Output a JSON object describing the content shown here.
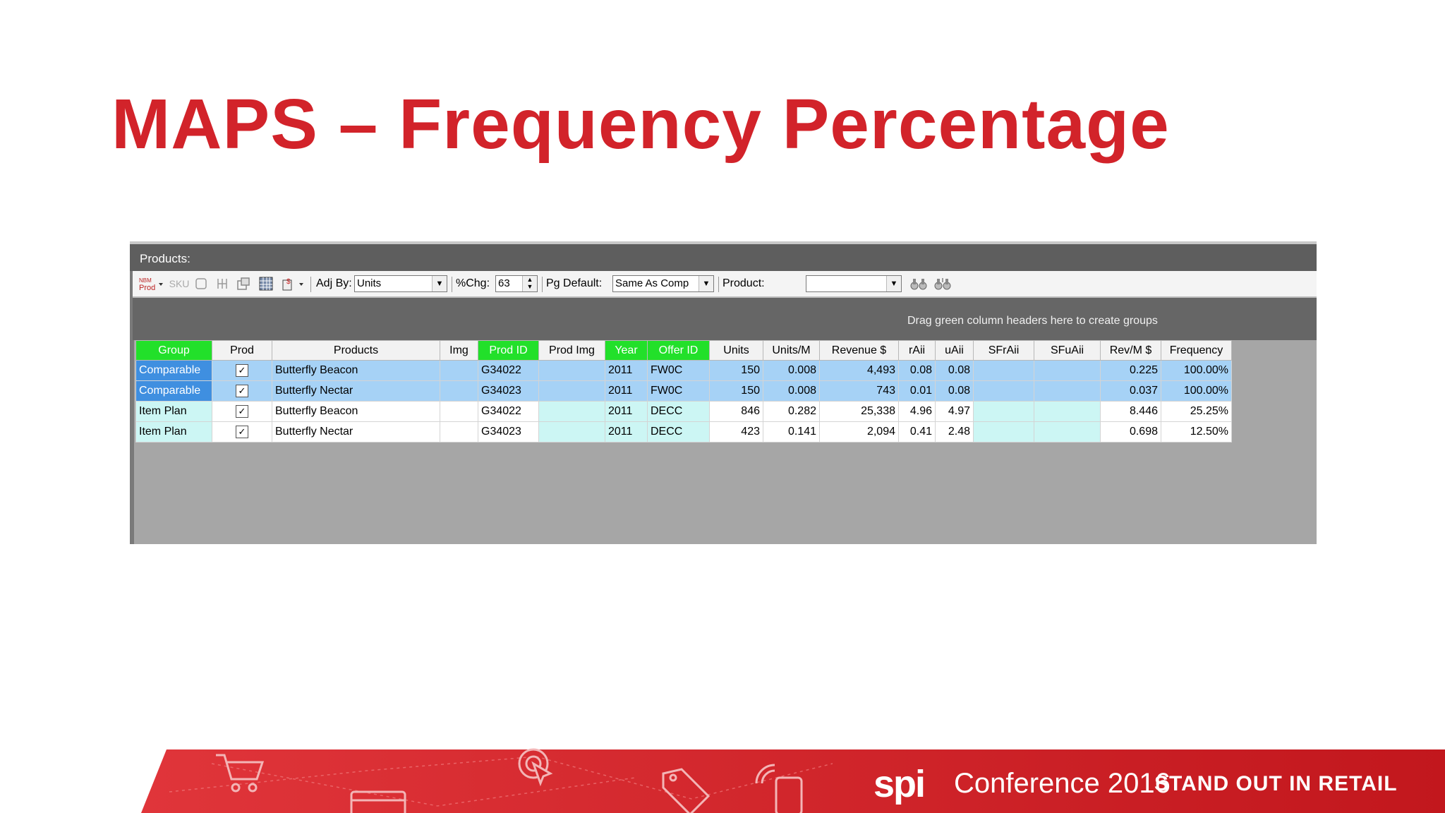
{
  "slide": {
    "title": "MAPS – Frequency Percentage"
  },
  "panel": {
    "title": "Products:",
    "group_hint": "Drag green column headers here to create groups"
  },
  "toolbar": {
    "adj_by_label": "Adj By:",
    "adj_by_value": "Units",
    "pct_chg_label": "%Chg:",
    "pct_chg_value": "63",
    "pg_default_label": "Pg Default:",
    "pg_default_value": "Same As Comp",
    "product_label": "Product:",
    "product_value": "",
    "icons": [
      "nbm-prod-icon",
      "sku-icon",
      "clear-icon",
      "hierarchy-icon",
      "copy-icon",
      "grid-icon",
      "price-icon",
      "binoculars-icon",
      "binoculars-next-icon"
    ]
  },
  "grid": {
    "columns": [
      "Group",
      "Prod",
      "Products",
      "Img",
      "Prod ID",
      "Prod Img",
      "Year",
      "Offer ID",
      "Units",
      "Units/M",
      "Revenue $",
      "rAii",
      "uAii",
      "SFrAii",
      "SFuAii",
      "Rev/M $",
      "Frequency"
    ],
    "green_columns": [
      "Group",
      "Prod ID",
      "Year",
      "Offer ID"
    ],
    "rows": [
      {
        "group": "Comparable",
        "prod": "✓",
        "product": "Butterfly Beacon",
        "img": "",
        "prod_id": "G34022",
        "prod_img": "",
        "year": "2011",
        "offer_id": "FW0C",
        "units": "150",
        "units_m": "0.008",
        "revenue": "4,493",
        "raii": "0.08",
        "uaii": "0.08",
        "sfraii": "",
        "sfuaii": "",
        "rev_m": "0.225",
        "frequency": "100.00%"
      },
      {
        "group": "Comparable",
        "prod": "✓",
        "product": "Butterfly Nectar",
        "img": "",
        "prod_id": "G34023",
        "prod_img": "",
        "year": "2011",
        "offer_id": "FW0C",
        "units": "150",
        "units_m": "0.008",
        "revenue": "743",
        "raii": "0.01",
        "uaii": "0.08",
        "sfraii": "",
        "sfuaii": "",
        "rev_m": "0.037",
        "frequency": "100.00%"
      },
      {
        "group": "Item Plan",
        "prod": "✓",
        "product": "Butterfly Beacon",
        "img": "",
        "prod_id": "G34022",
        "prod_img": "",
        "year": "2011",
        "offer_id": "DECC",
        "units": "846",
        "units_m": "0.282",
        "revenue": "25,338",
        "raii": "4.96",
        "uaii": "4.97",
        "sfraii": "",
        "sfuaii": "",
        "rev_m": "8.446",
        "frequency": "25.25%"
      },
      {
        "group": "Item Plan",
        "prod": "✓",
        "product": "Butterfly Nectar",
        "img": "",
        "prod_id": "G34023",
        "prod_img": "",
        "year": "2011",
        "offer_id": "DECC",
        "units": "423",
        "units_m": "0.141",
        "revenue": "2,094",
        "raii": "0.41",
        "uaii": "2.48",
        "sfraii": "",
        "sfuaii": "",
        "rev_m": "0.698",
        "frequency": "12.50%"
      }
    ]
  },
  "footer": {
    "brand": "spi",
    "conference": "Conference 2016",
    "tagline": "STAND OUT IN RETAIL",
    "icons": [
      "cart-icon",
      "credit-card-icon",
      "click-target-icon",
      "price-tag-icon",
      "mobile-shopping-icon"
    ]
  },
  "colors": {
    "title_red": "#d2232a",
    "banner_red": "#d0262b",
    "green_header": "#22e02a",
    "comparable_row": "#a6d2f6",
    "item_plan_row": "#ccf6f4"
  }
}
